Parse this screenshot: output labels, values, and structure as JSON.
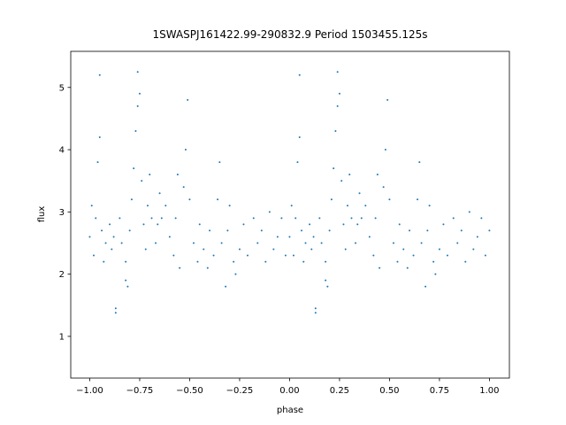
{
  "chart_data": {
    "type": "scatter",
    "title": "1SWASPJ161422.99-290832.9 Period 1503455.125s",
    "xlabel": "phase",
    "ylabel": "flux",
    "color": "#1f77b4",
    "x": [
      0.0,
      0.01,
      0.02,
      0.03,
      0.04,
      0.05,
      0.05,
      0.06,
      0.07,
      0.08,
      0.1,
      0.11,
      0.12,
      0.13,
      0.13,
      0.15,
      0.16,
      0.18,
      0.18,
      0.19,
      0.2,
      0.21,
      0.22,
      0.23,
      0.24,
      0.24,
      0.25,
      0.26,
      0.27,
      0.28,
      0.29,
      0.3,
      0.31,
      0.33,
      0.34,
      0.35,
      0.36,
      0.38,
      0.4,
      0.42,
      0.43,
      0.44,
      0.45,
      0.47,
      0.48,
      0.49,
      0.5,
      0.52,
      0.54,
      0.55,
      0.57,
      0.59,
      0.6,
      0.62,
      0.64,
      0.65,
      0.66,
      0.68,
      0.69,
      0.7,
      0.72,
      0.73,
      0.75,
      0.77,
      0.79,
      0.82,
      0.84,
      0.86,
      0.88,
      0.9,
      0.92,
      0.94,
      0.96,
      0.98,
      1.0,
      -1.0,
      -0.99,
      -0.98,
      -0.97,
      -0.96,
      -0.95,
      -0.95,
      -0.94,
      -0.93,
      -0.92,
      -0.9,
      -0.89,
      -0.88,
      -0.87,
      -0.87,
      -0.85,
      -0.84,
      -0.82,
      -0.82,
      -0.81,
      -0.8,
      -0.79,
      -0.78,
      -0.77,
      -0.76,
      -0.76,
      -0.75,
      -0.74,
      -0.73,
      -0.72,
      -0.71,
      -0.7,
      -0.69,
      -0.67,
      -0.66,
      -0.65,
      -0.64,
      -0.62,
      -0.6,
      -0.58,
      -0.57,
      -0.56,
      -0.55,
      -0.53,
      -0.52,
      -0.51,
      -0.5,
      -0.48,
      -0.46,
      -0.45,
      -0.43,
      -0.41,
      -0.4,
      -0.38,
      -0.36,
      -0.35,
      -0.34,
      -0.32,
      -0.31,
      -0.3,
      -0.28,
      -0.27,
      -0.25,
      -0.23,
      -0.21,
      -0.18,
      -0.16,
      -0.14,
      -0.12,
      -0.1,
      -0.08,
      -0.06,
      -0.04,
      -0.02
    ],
    "y": [
      2.6,
      3.1,
      2.3,
      2.9,
      3.8,
      4.2,
      5.2,
      2.7,
      2.2,
      2.5,
      2.8,
      2.4,
      2.6,
      1.45,
      1.38,
      2.9,
      2.5,
      1.9,
      2.2,
      1.8,
      2.7,
      3.2,
      3.7,
      4.3,
      4.7,
      5.25,
      4.9,
      3.5,
      2.8,
      2.4,
      3.1,
      3.6,
      2.9,
      2.5,
      2.8,
      3.3,
      2.9,
      3.1,
      2.6,
      2.3,
      2.9,
      3.6,
      2.1,
      3.4,
      4.0,
      4.8,
      3.2,
      2.5,
      2.2,
      2.8,
      2.4,
      2.1,
      2.7,
      2.3,
      3.2,
      3.8,
      2.5,
      1.8,
      2.7,
      3.1,
      2.2,
      2.0,
      2.4,
      2.8,
      2.3,
      2.9,
      2.5,
      2.7,
      2.2,
      3.0,
      2.4,
      2.6,
      2.9,
      2.3,
      2.7,
      2.6,
      3.1,
      2.3,
      2.9,
      3.8,
      4.2,
      5.2,
      2.7,
      2.2,
      2.5,
      2.8,
      2.4,
      2.6,
      1.45,
      1.38,
      2.9,
      2.5,
      1.9,
      2.2,
      1.8,
      2.7,
      3.2,
      3.7,
      4.3,
      4.7,
      5.25,
      4.9,
      3.5,
      2.8,
      2.4,
      3.1,
      3.6,
      2.9,
      2.5,
      2.8,
      3.3,
      2.9,
      3.1,
      2.6,
      2.3,
      2.9,
      3.6,
      2.1,
      3.4,
      4.0,
      4.8,
      3.2,
      2.5,
      2.2,
      2.8,
      2.4,
      2.1,
      2.7,
      2.3,
      3.2,
      3.8,
      2.5,
      1.8,
      2.7,
      3.1,
      2.2,
      2.0,
      2.4,
      2.8,
      2.3,
      2.9,
      2.5,
      2.7,
      2.2,
      3.0,
      2.4,
      2.6,
      2.9,
      2.3
    ],
    "xlim": [
      -1.095,
      1.1
    ],
    "ylim": [
      0.33,
      5.58
    ],
    "xticks": [
      {
        "value": -1.0,
        "label": "−1.00"
      },
      {
        "value": -0.75,
        "label": "−0.75"
      },
      {
        "value": -0.5,
        "label": "−0.50"
      },
      {
        "value": -0.25,
        "label": "−0.25"
      },
      {
        "value": 0,
        "label": "0.00"
      },
      {
        "value": 0.25,
        "label": "0.25"
      },
      {
        "value": 0.5,
        "label": "0.50"
      },
      {
        "value": 0.75,
        "label": "0.75"
      },
      {
        "value": 1.0,
        "label": "1.00"
      }
    ],
    "yticks": [
      1,
      2,
      3,
      4,
      5
    ]
  }
}
